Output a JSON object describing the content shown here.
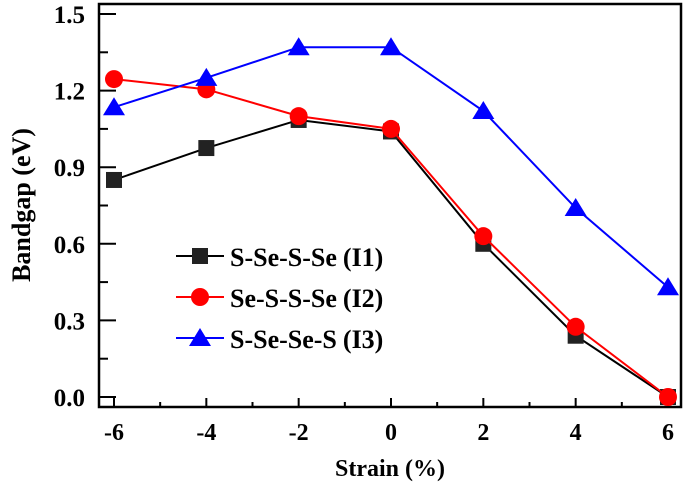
{
  "chart_data": {
    "type": "line",
    "title": "",
    "xlabel": "Strain (%)",
    "ylabel": "Bandgap (eV)",
    "xlim": [
      -6.6,
      6.6
    ],
    "ylim": [
      -0.05,
      1.55
    ],
    "xticks": [
      -6,
      -4,
      -2,
      0,
      2,
      4,
      6
    ],
    "xtick_labels": [
      "-6",
      "-4",
      "-2",
      "0",
      "2",
      "4",
      "6"
    ],
    "yticks": [
      0.0,
      0.3,
      0.6,
      0.9,
      1.2,
      1.5
    ],
    "ytick_labels": [
      "0.0",
      "0.3",
      "0.6",
      "0.9",
      "1.2",
      "1.5"
    ],
    "grid": false,
    "legend_position": "bottom-left",
    "x": [
      -6,
      -4,
      -2,
      0,
      2,
      4,
      6
    ],
    "series": [
      {
        "name": "S-Se-S-Se",
        "subscript_label": "(I1)",
        "label_base": "(I",
        "label_sub": "1",
        "label_close": ")",
        "color": "#000000",
        "marker": "square",
        "values": [
          0.85,
          0.975,
          1.085,
          1.04,
          0.6,
          0.24,
          0.0
        ]
      },
      {
        "name": "Se-S-S-Se",
        "subscript_label": "(I2)",
        "label_base": "(I",
        "label_sub": "2",
        "label_close": ")",
        "color": "#ff0000",
        "marker": "circle",
        "values": [
          1.245,
          1.205,
          1.1,
          1.05,
          0.63,
          0.275,
          0.0
        ]
      },
      {
        "name": "S-Se-Se-S",
        "subscript_label": "(I3)",
        "label_base": "(I",
        "label_sub": "3",
        "label_close": ")",
        "color": "#0000ff",
        "marker": "triangle",
        "values": [
          1.135,
          1.25,
          1.37,
          1.37,
          1.12,
          0.74,
          0.43
        ]
      }
    ]
  }
}
